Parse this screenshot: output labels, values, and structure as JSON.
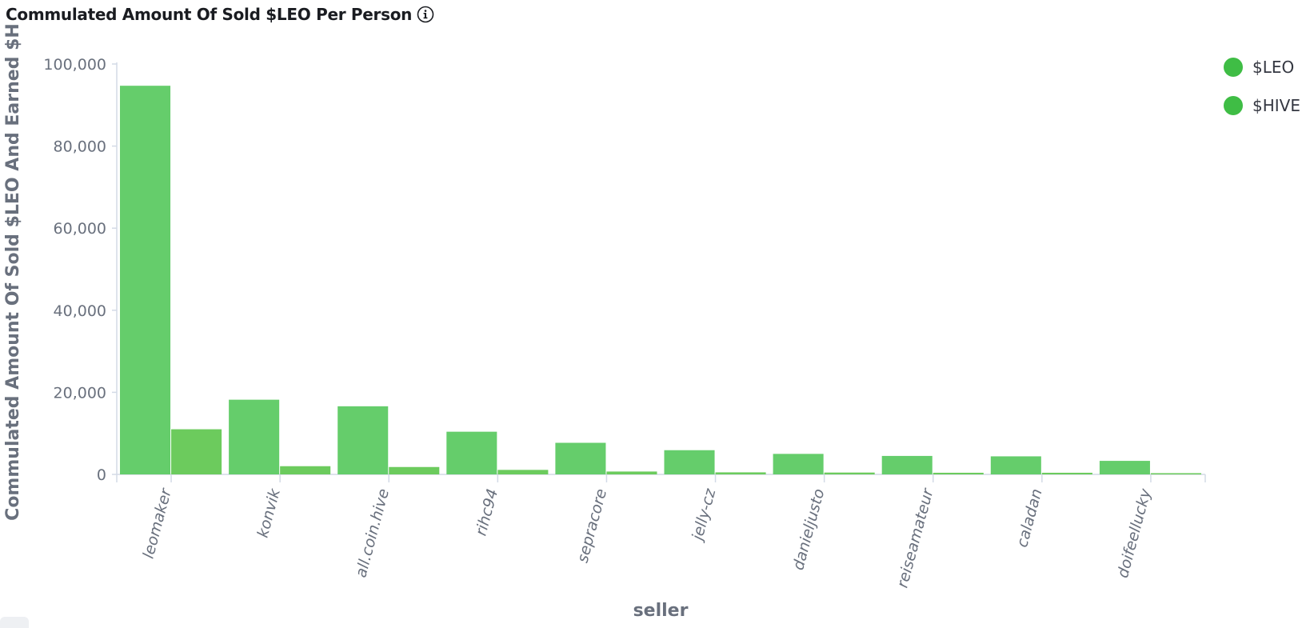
{
  "panel": {
    "title": "Commulated Amount Of Sold $LEO Per Person",
    "info_icon": "info-circle-icon"
  },
  "chart_data": {
    "type": "bar",
    "title": "Commulated Amount Of Sold $LEO Per Person",
    "xlabel": "seller",
    "ylabel": "Commulated Amount Of Sold $LEO And Earned $H",
    "ylim": [
      0,
      100000
    ],
    "yticks": [
      0,
      20000,
      40000,
      60000,
      80000,
      100000
    ],
    "ytick_labels": [
      "0",
      "20,000",
      "40,000",
      "60,000",
      "80,000",
      "100,000"
    ],
    "categories": [
      "leomaker",
      "konvik",
      "all.coin.hive",
      "rihc94",
      "sepracore",
      "jelly-cz",
      "danieljusto",
      "reiseamateur",
      "caladan",
      "doifeellucky"
    ],
    "series": [
      {
        "name": "$LEO",
        "color": "#65cd6b",
        "values": [
          94700,
          18200,
          16600,
          10400,
          7700,
          5900,
          5000,
          4500,
          4400,
          3300
        ]
      },
      {
        "name": "$HIVE",
        "color": "#6ccb5d",
        "values": [
          11000,
          2000,
          1800,
          1100,
          700,
          500,
          450,
          400,
          400,
          300
        ]
      }
    ],
    "grid": false,
    "legend_position": "top-right"
  }
}
